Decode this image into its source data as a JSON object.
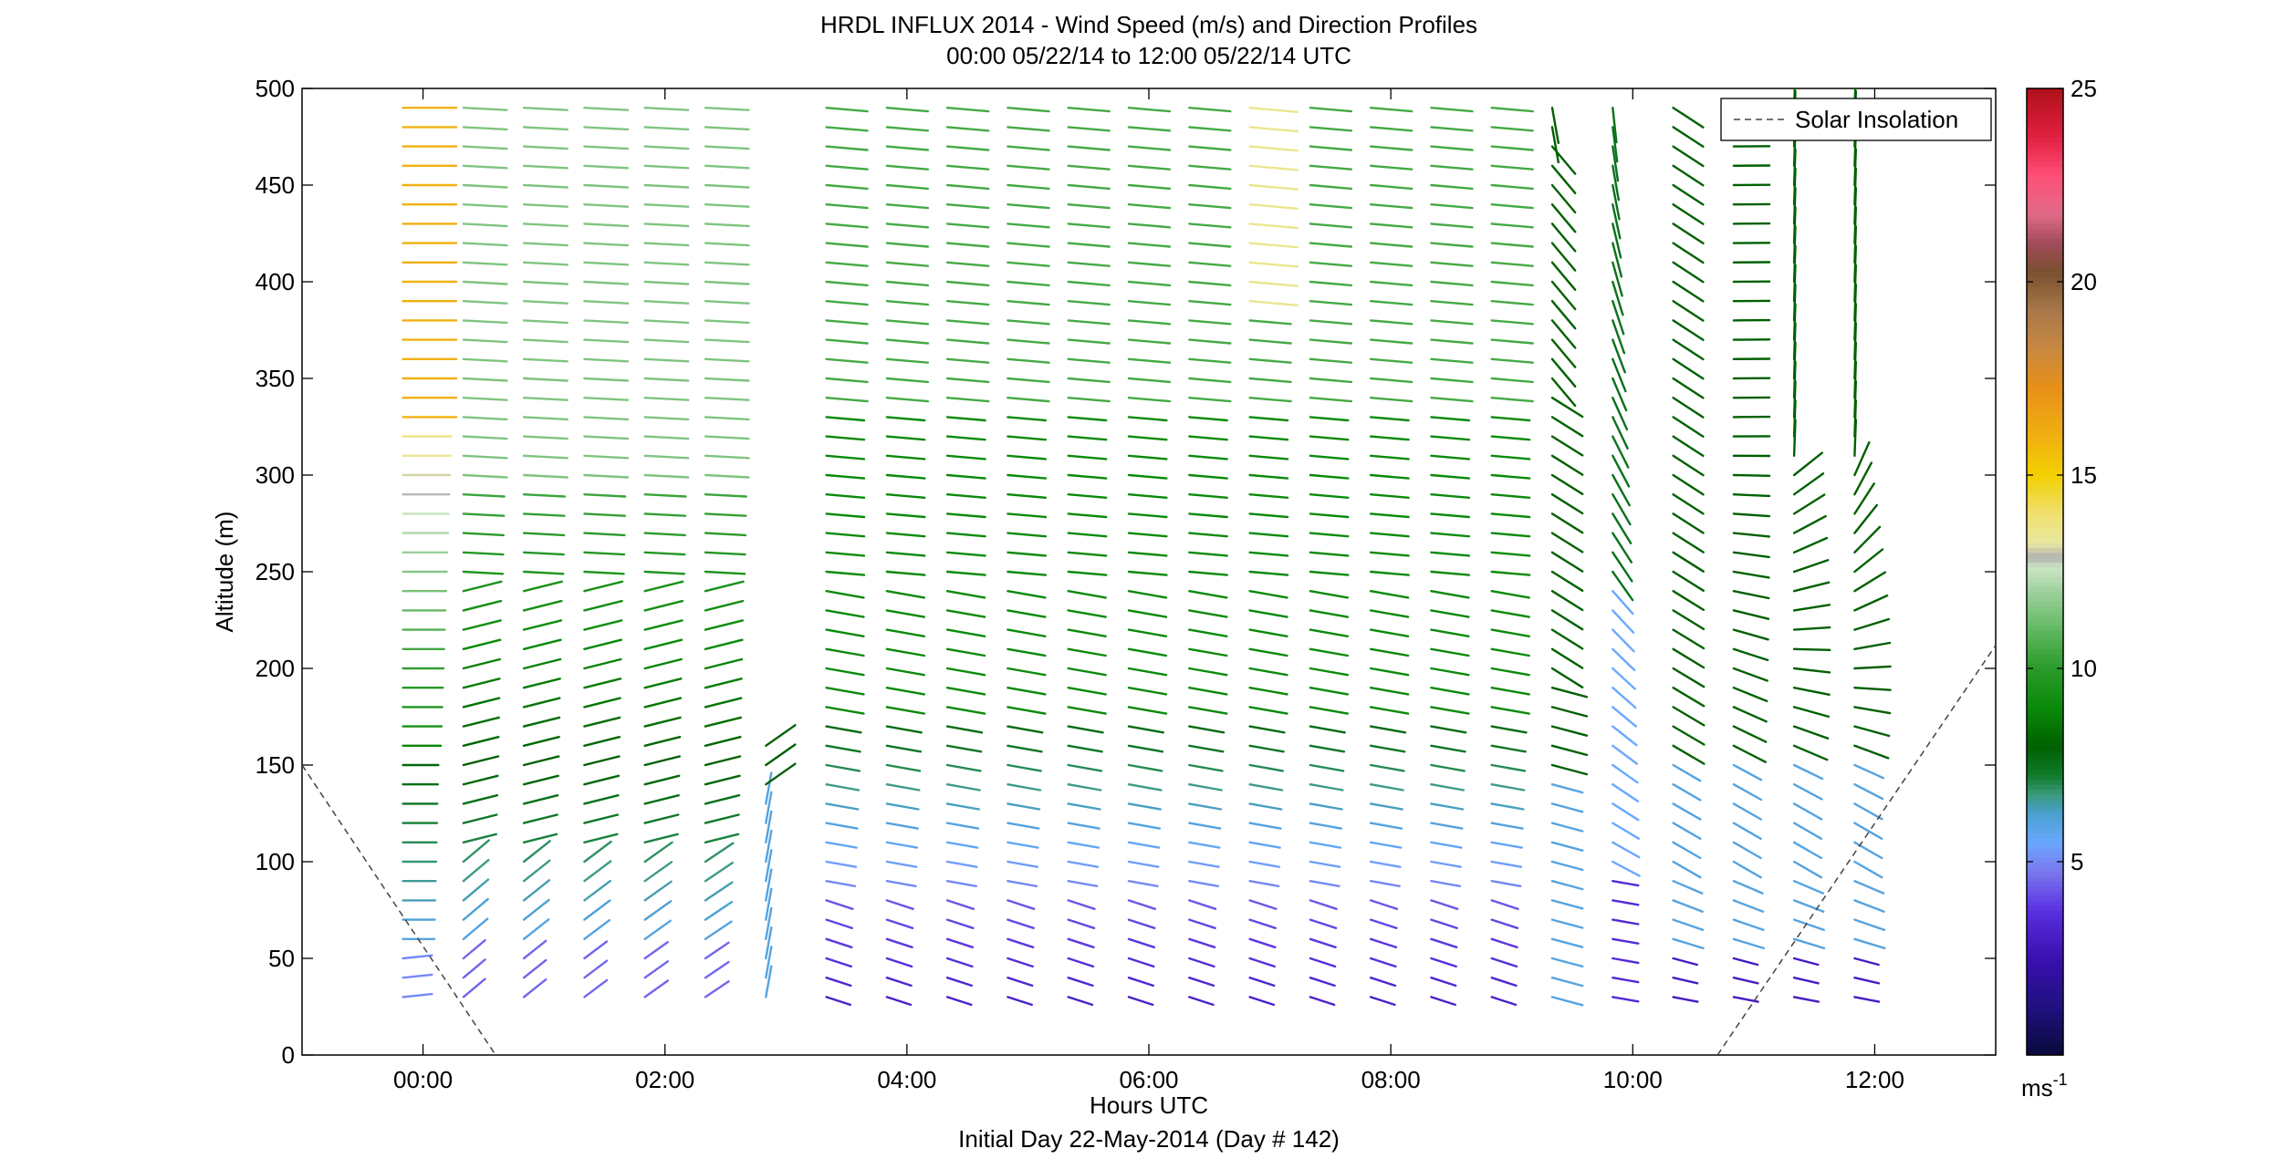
{
  "chart_data": {
    "type": "wind-profile",
    "title": "HRDL INFLUX 2014 - Wind Speed (m/s) and Direction Profiles",
    "subtitle": "00:00 05/22/14 to 12:00 05/22/14  UTC",
    "xlabel": "Hours UTC",
    "xlabel2": "Initial Day 22-May-2014 (Day # 142)",
    "ylabel": "Altitude (m)",
    "xlim": [
      -1.0,
      13.0
    ],
    "ylim": [
      0,
      500
    ],
    "x_ticks": [
      0,
      2,
      4,
      6,
      8,
      10,
      12
    ],
    "x_tick_labels": [
      "00:00",
      "02:00",
      "04:00",
      "06:00",
      "08:00",
      "10:00",
      "12:00"
    ],
    "y_ticks": [
      0,
      50,
      100,
      150,
      200,
      250,
      300,
      350,
      400,
      450,
      500
    ],
    "y_tick_labels": [
      "0",
      "50",
      "100",
      "150",
      "200",
      "250",
      "300",
      "350",
      "400",
      "450",
      "500"
    ],
    "colorbar": {
      "range": [
        0,
        25
      ],
      "ticks": [
        5,
        10,
        15,
        20,
        25
      ],
      "tick_labels": [
        "5",
        "10",
        "15",
        "20",
        "25"
      ],
      "unit_label": "ms",
      "unit_exponent": "-1"
    },
    "legend": {
      "label": "Solar Insolation",
      "position": "top-right"
    },
    "solar_insolation": [
      {
        "x": [
          -1.0,
          0.6
        ],
        "y": [
          150,
          0
        ]
      },
      {
        "x": [
          10.7,
          13.0
        ],
        "y": [
          0,
          212
        ]
      }
    ],
    "profile_times": [
      0.0,
      0.5,
      1.0,
      1.5,
      2.0,
      2.5,
      3.0,
      3.5,
      4.0,
      4.5,
      5.0,
      5.5,
      6.0,
      6.5,
      7.0,
      7.5,
      8.0,
      8.5,
      9.0,
      9.5,
      10.0,
      10.5,
      11.0,
      11.5,
      12.0
    ],
    "altitudes": [
      30,
      40,
      50,
      60,
      70,
      80,
      90,
      100,
      110,
      120,
      130,
      140,
      150,
      160,
      170,
      180,
      190,
      200,
      210,
      220,
      230,
      240,
      250,
      260,
      270,
      280,
      290,
      300,
      310,
      320,
      330,
      340,
      350,
      360,
      370,
      380,
      390,
      400,
      410,
      420,
      430,
      440,
      450,
      460,
      470,
      480,
      490
    ],
    "speed_unit": "m/s",
    "colors": {
      "axis": "#000000",
      "solar_line": "#444444",
      "colormap": [
        [
          0.0,
          "#0a0a3a"
        ],
        [
          0.05,
          "#201080"
        ],
        [
          0.1,
          "#3a0fb0"
        ],
        [
          0.15,
          "#5a30e0"
        ],
        [
          0.19,
          "#7a78ee"
        ],
        [
          0.22,
          "#6aa8ff"
        ],
        [
          0.25,
          "#4aa0d0"
        ],
        [
          0.27,
          "#3a9a7a"
        ],
        [
          0.29,
          "#0f7a2a"
        ],
        [
          0.32,
          "#006000"
        ],
        [
          0.36,
          "#0a8a0a"
        ],
        [
          0.4,
          "#2a9a2a"
        ],
        [
          0.44,
          "#60b860"
        ],
        [
          0.48,
          "#9ed09e"
        ],
        [
          0.505,
          "#cce6c4"
        ],
        [
          0.515,
          "#b0b0b0"
        ],
        [
          0.53,
          "#e8e8a0"
        ],
        [
          0.56,
          "#f0e070"
        ],
        [
          0.6,
          "#f2d000"
        ],
        [
          0.64,
          "#f0b010"
        ],
        [
          0.69,
          "#e89018"
        ],
        [
          0.73,
          "#c88840"
        ],
        [
          0.77,
          "#a8784a"
        ],
        [
          0.81,
          "#7a5030"
        ],
        [
          0.84,
          "#a04a5a"
        ],
        [
          0.87,
          "#e06a88"
        ],
        [
          0.91,
          "#ff5078"
        ],
        [
          0.95,
          "#e02040"
        ],
        [
          1.0,
          "#b0101a"
        ]
      ]
    }
  }
}
